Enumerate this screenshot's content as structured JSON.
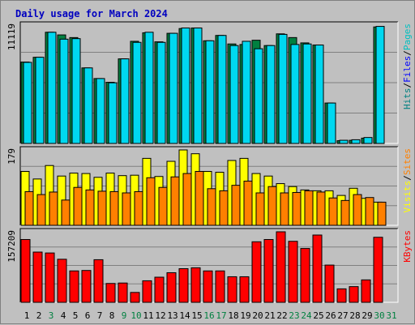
{
  "chart_data": {
    "type": "bar",
    "title": "Daily usage for March 2024",
    "categories": [
      "1",
      "2",
      "3",
      "4",
      "5",
      "6",
      "7",
      "8",
      "9",
      "10",
      "11",
      "12",
      "13",
      "14",
      "15",
      "16",
      "17",
      "18",
      "19",
      "20",
      "21",
      "22",
      "23",
      "24",
      "25",
      "26",
      "27",
      "28",
      "29",
      "30",
      "31"
    ],
    "weekend_days": [
      3,
      9,
      10,
      16,
      17,
      23,
      24,
      30,
      31
    ],
    "panels": [
      {
        "max_label": "11119",
        "ylim": [
          0,
          11119
        ],
        "legend": [
          {
            "name": "Pages",
            "color": "#00c0c0"
          },
          {
            "name": "Files",
            "color": "#0000ff"
          },
          {
            "name": "Hits",
            "color": "#008080"
          }
        ],
        "series": [
          {
            "name": "Hits",
            "color": "#008040",
            "values": [
              7650,
              8100,
              10450,
              10200,
              9950,
              7100,
              6100,
              5750,
              7950,
              9600,
              10400,
              9550,
              10350,
              10800,
              10850,
              9650,
              10150,
              9350,
              9300,
              9700,
              9200,
              10300,
              9950,
              9450,
              9250,
              3800,
              260,
              300,
              500,
              10950
            ]
          },
          {
            "name": "Files",
            "color": "#00d8f0",
            "values": [
              7620,
              8100,
              10450,
              9800,
              9850,
              7100,
              6100,
              5700,
              7950,
              9500,
              10450,
              9500,
              10350,
              10850,
              10850,
              9650,
              10150,
              9200,
              9600,
              8900,
              9200,
              10250,
              9300,
              9350,
              9250,
              3800,
              300,
              350,
              560,
              11000
            ]
          }
        ]
      },
      {
        "max_label": "179",
        "ylim": [
          0,
          179
        ],
        "legend": [
          {
            "name": "Sites",
            "color": "#ff8000"
          },
          {
            "name": "Visits",
            "color": "#ffff00"
          }
        ],
        "series": [
          {
            "name": "Visits",
            "color": "#ffff00",
            "values": [
              128,
              110,
              142,
              117,
              124,
              123,
              114,
              124,
              118,
              119,
              159,
              116,
              152,
              179,
              170,
              128,
              126,
              154,
              159,
              123,
              117,
              99,
              92,
              84,
              82,
              82,
              71,
              88,
              64,
              55
            ]
          },
          {
            "name": "Sites",
            "color": "#ff8000",
            "values": [
              80,
              73,
              79,
              60,
              90,
              84,
              81,
              80,
              77,
              80,
              113,
              90,
              115,
              123,
              128,
              87,
              82,
              95,
              105,
              77,
              92,
              77,
              78,
              82,
              79,
              65,
              59,
              73,
              66,
              55
            ]
          }
        ]
      },
      {
        "max_label": "157209",
        "ylim": [
          0,
          157209
        ],
        "legend": [
          {
            "name": "KBytes",
            "color": "#ff0000"
          }
        ],
        "series": [
          {
            "name": "KBytes",
            "color": "#ff0000",
            "values": [
              140000,
              112000,
              110000,
              96000,
              70000,
              71000,
              95000,
              42000,
              43000,
              22000,
              48000,
              56000,
              66000,
              75000,
              77000,
              70000,
              70000,
              57000,
              57000,
              135000,
              140000,
              157209,
              136000,
              120000,
              150000,
              83000,
              30000,
              35000,
              50000,
              145000
            ]
          }
        ]
      }
    ]
  }
}
